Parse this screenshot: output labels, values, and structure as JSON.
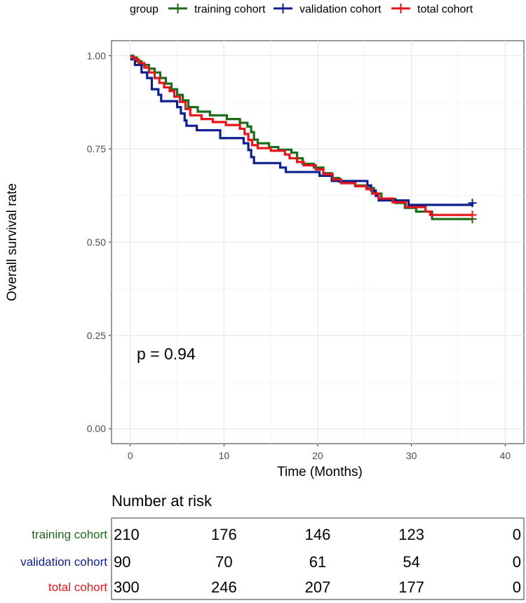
{
  "chart_data": {
    "type": "line",
    "subtype": "kaplan-meier",
    "legend": {
      "title": "group",
      "position": "top"
    },
    "xlabel": "Time (Months)",
    "ylabel": "Overall survival rate",
    "xlim": [
      -2,
      42
    ],
    "ylim": [
      -0.04,
      1.04
    ],
    "x_ticks": [
      0,
      10,
      20,
      30,
      40
    ],
    "y_ticks": [
      0.0,
      0.25,
      0.5,
      0.75,
      1.0
    ],
    "y_tick_labels": [
      "0.00",
      "0.25",
      "0.50",
      "0.75",
      "1.00"
    ],
    "grid": true,
    "annotation": "p = 0.94",
    "series": [
      {
        "name": "training cohort",
        "color": "#1a6b1a",
        "censor": [
          36.5,
          0.562
        ],
        "points": [
          [
            0,
            1.0
          ],
          [
            0.3,
            0.995
          ],
          [
            0.7,
            0.985
          ],
          [
            1.2,
            0.975
          ],
          [
            2.0,
            0.965
          ],
          [
            2.6,
            0.955
          ],
          [
            3.2,
            0.94
          ],
          [
            3.8,
            0.925
          ],
          [
            4.4,
            0.91
          ],
          [
            5.0,
            0.895
          ],
          [
            5.6,
            0.88
          ],
          [
            6.2,
            0.862
          ],
          [
            7.2,
            0.85
          ],
          [
            8.5,
            0.84
          ],
          [
            10.3,
            0.83
          ],
          [
            11.7,
            0.82
          ],
          [
            12.5,
            0.81
          ],
          [
            12.9,
            0.795
          ],
          [
            13.2,
            0.775
          ],
          [
            13.6,
            0.765
          ],
          [
            14.8,
            0.755
          ],
          [
            15.8,
            0.748
          ],
          [
            17.2,
            0.74
          ],
          [
            17.8,
            0.725
          ],
          [
            18.4,
            0.71
          ],
          [
            19.6,
            0.7
          ],
          [
            20.6,
            0.685
          ],
          [
            21.5,
            0.672
          ],
          [
            22.3,
            0.662
          ],
          [
            24.0,
            0.652
          ],
          [
            25.3,
            0.645
          ],
          [
            26.0,
            0.63
          ],
          [
            26.8,
            0.616
          ],
          [
            28.3,
            0.605
          ],
          [
            29.3,
            0.592
          ],
          [
            30.5,
            0.582
          ],
          [
            32.2,
            0.562
          ],
          [
            36.5,
            0.562
          ]
        ]
      },
      {
        "name": "validation cohort",
        "color": "#0d1f8c",
        "censor": [
          36.5,
          0.605
        ],
        "points": [
          [
            0,
            0.99
          ],
          [
            0.5,
            0.975
          ],
          [
            1.2,
            0.955
          ],
          [
            1.8,
            0.94
          ],
          [
            2.3,
            0.91
          ],
          [
            3.0,
            0.895
          ],
          [
            3.3,
            0.878
          ],
          [
            5.0,
            0.862
          ],
          [
            5.4,
            0.845
          ],
          [
            5.8,
            0.826
          ],
          [
            6.0,
            0.812
          ],
          [
            7.1,
            0.8
          ],
          [
            9.6,
            0.779
          ],
          [
            12.1,
            0.765
          ],
          [
            12.6,
            0.747
          ],
          [
            12.9,
            0.728
          ],
          [
            13.2,
            0.712
          ],
          [
            16.0,
            0.7
          ],
          [
            16.6,
            0.688
          ],
          [
            20.2,
            0.678
          ],
          [
            21.5,
            0.664
          ],
          [
            25.3,
            0.652
          ],
          [
            25.7,
            0.638
          ],
          [
            26.2,
            0.624
          ],
          [
            26.5,
            0.612
          ],
          [
            29.7,
            0.6
          ],
          [
            36.5,
            0.605
          ]
        ]
      },
      {
        "name": "total cohort",
        "color": "#e8141b",
        "censor": [
          36.5,
          0.573
        ],
        "points": [
          [
            0,
            0.997
          ],
          [
            0.4,
            0.99
          ],
          [
            0.9,
            0.98
          ],
          [
            1.5,
            0.968
          ],
          [
            2.0,
            0.955
          ],
          [
            2.6,
            0.94
          ],
          [
            3.1,
            0.927
          ],
          [
            3.6,
            0.915
          ],
          [
            4.2,
            0.905
          ],
          [
            4.7,
            0.89
          ],
          [
            5.3,
            0.876
          ],
          [
            5.9,
            0.857
          ],
          [
            6.4,
            0.84
          ],
          [
            7.6,
            0.83
          ],
          [
            8.8,
            0.822
          ],
          [
            10.2,
            0.814
          ],
          [
            11.7,
            0.804
          ],
          [
            12.2,
            0.79
          ],
          [
            12.6,
            0.774
          ],
          [
            13.0,
            0.76
          ],
          [
            13.6,
            0.752
          ],
          [
            15.0,
            0.745
          ],
          [
            16.5,
            0.735
          ],
          [
            17.0,
            0.725
          ],
          [
            17.8,
            0.715
          ],
          [
            18.5,
            0.706
          ],
          [
            19.8,
            0.695
          ],
          [
            20.6,
            0.682
          ],
          [
            21.6,
            0.668
          ],
          [
            22.5,
            0.658
          ],
          [
            24.0,
            0.65
          ],
          [
            25.2,
            0.642
          ],
          [
            25.8,
            0.63
          ],
          [
            26.5,
            0.617
          ],
          [
            28.0,
            0.607
          ],
          [
            29.4,
            0.594
          ],
          [
            31.5,
            0.582
          ],
          [
            32.0,
            0.573
          ],
          [
            36.5,
            0.573
          ]
        ]
      }
    ]
  },
  "risk_table": {
    "title": "Number at risk",
    "times": [
      0,
      10,
      20,
      30,
      40
    ],
    "rows": [
      {
        "label": "training cohort",
        "color": "#1a6b1a",
        "values": [
          "210",
          "176",
          "146",
          "123",
          "0"
        ]
      },
      {
        "label": "validation cohort",
        "color": "#0d1f8c",
        "values": [
          "90",
          "70",
          "61",
          "54",
          "0"
        ]
      },
      {
        "label": "total cohort",
        "color": "#e8141b",
        "values": [
          "300",
          "246",
          "207",
          "177",
          "0"
        ]
      }
    ]
  }
}
